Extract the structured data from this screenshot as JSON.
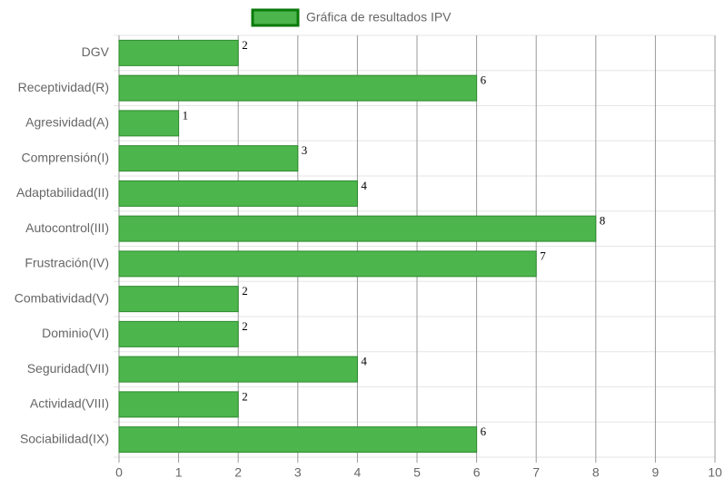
{
  "chart_data": {
    "type": "bar",
    "orientation": "horizontal",
    "categories": [
      "DGV",
      "Receptividad(R)",
      "Agresividad(A)",
      "Comprensión(I)",
      "Adaptabilidad(II)",
      "Autocontrol(III)",
      "Frustración(IV)",
      "Combatividad(V)",
      "Dominio(VI)",
      "Seguridad(VII)",
      "Actividad(VIII)",
      "Sociabilidad(IX)"
    ],
    "series": [
      {
        "name": "Gráfica de resultados IPV",
        "color": "#4cb54c",
        "border_color": "#2e8b2e",
        "values": [
          2,
          6,
          1,
          3,
          4,
          8,
          7,
          2,
          2,
          4,
          2,
          6
        ]
      }
    ],
    "xlim": [
      0,
      10
    ],
    "xticks": [
      0,
      1,
      2,
      3,
      4,
      5,
      6,
      7,
      8,
      9,
      10
    ],
    "grid": true,
    "legend": "top"
  }
}
